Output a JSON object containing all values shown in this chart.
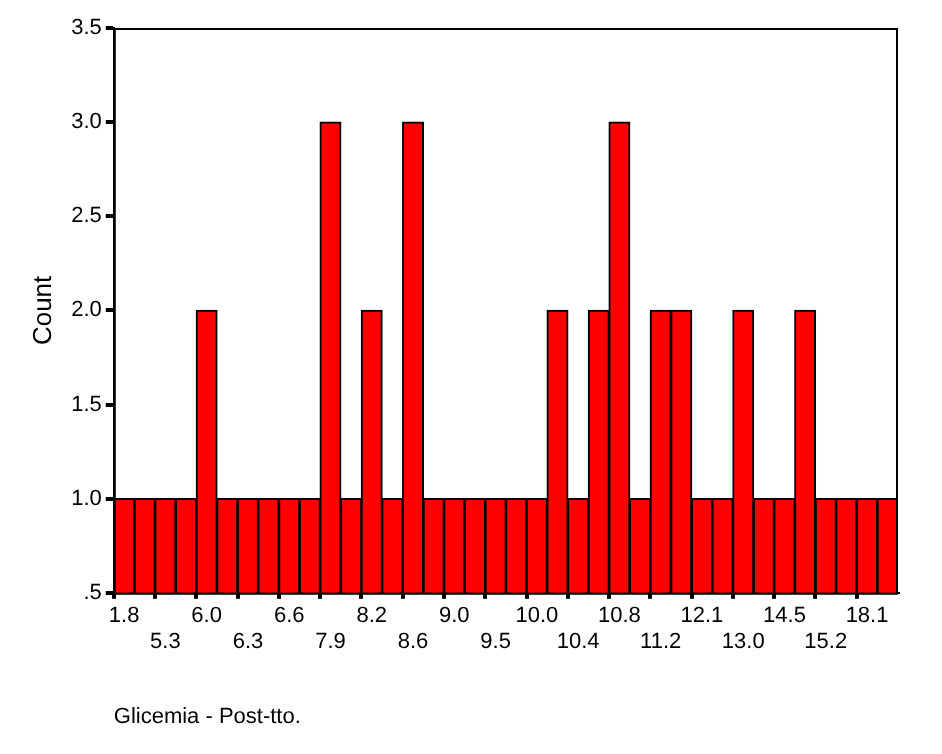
{
  "chart_data": {
    "type": "bar",
    "xlabel": "Glicemia - Post-tto.",
    "ylabel": "Count",
    "categories": [
      "1.8",
      null,
      "5.3",
      null,
      "6.0",
      null,
      "6.3",
      null,
      "6.6",
      null,
      "7.9",
      null,
      "8.2",
      null,
      "8.6",
      null,
      "9.0",
      null,
      "9.5",
      null,
      "10.0",
      null,
      "10.4",
      null,
      "10.8",
      null,
      "11.2",
      null,
      "12.1",
      null,
      "13.0",
      null,
      "14.5",
      null,
      "15.2",
      null,
      "18.1",
      null
    ],
    "values": [
      1,
      1,
      1,
      1,
      2,
      1,
      1,
      1,
      1,
      1,
      3,
      1,
      2,
      1,
      3,
      1,
      1,
      1,
      1,
      1,
      1,
      2,
      1,
      2,
      3,
      1,
      2,
      2,
      1,
      1,
      2,
      1,
      1,
      2,
      1,
      1,
      1,
      1
    ],
    "color": "#ff0000",
    "ylim": [
      0.5,
      3.5
    ],
    "yticks": [
      {
        "value": 0.5,
        "label": ".5"
      },
      {
        "value": 1,
        "label": "1.0"
      },
      1.5,
      {
        "value": 2,
        "label": "2.0"
      },
      2.5,
      {
        "value": 3,
        "label": "3.0"
      },
      3.5
    ],
    "grid": false,
    "legend": false
  }
}
